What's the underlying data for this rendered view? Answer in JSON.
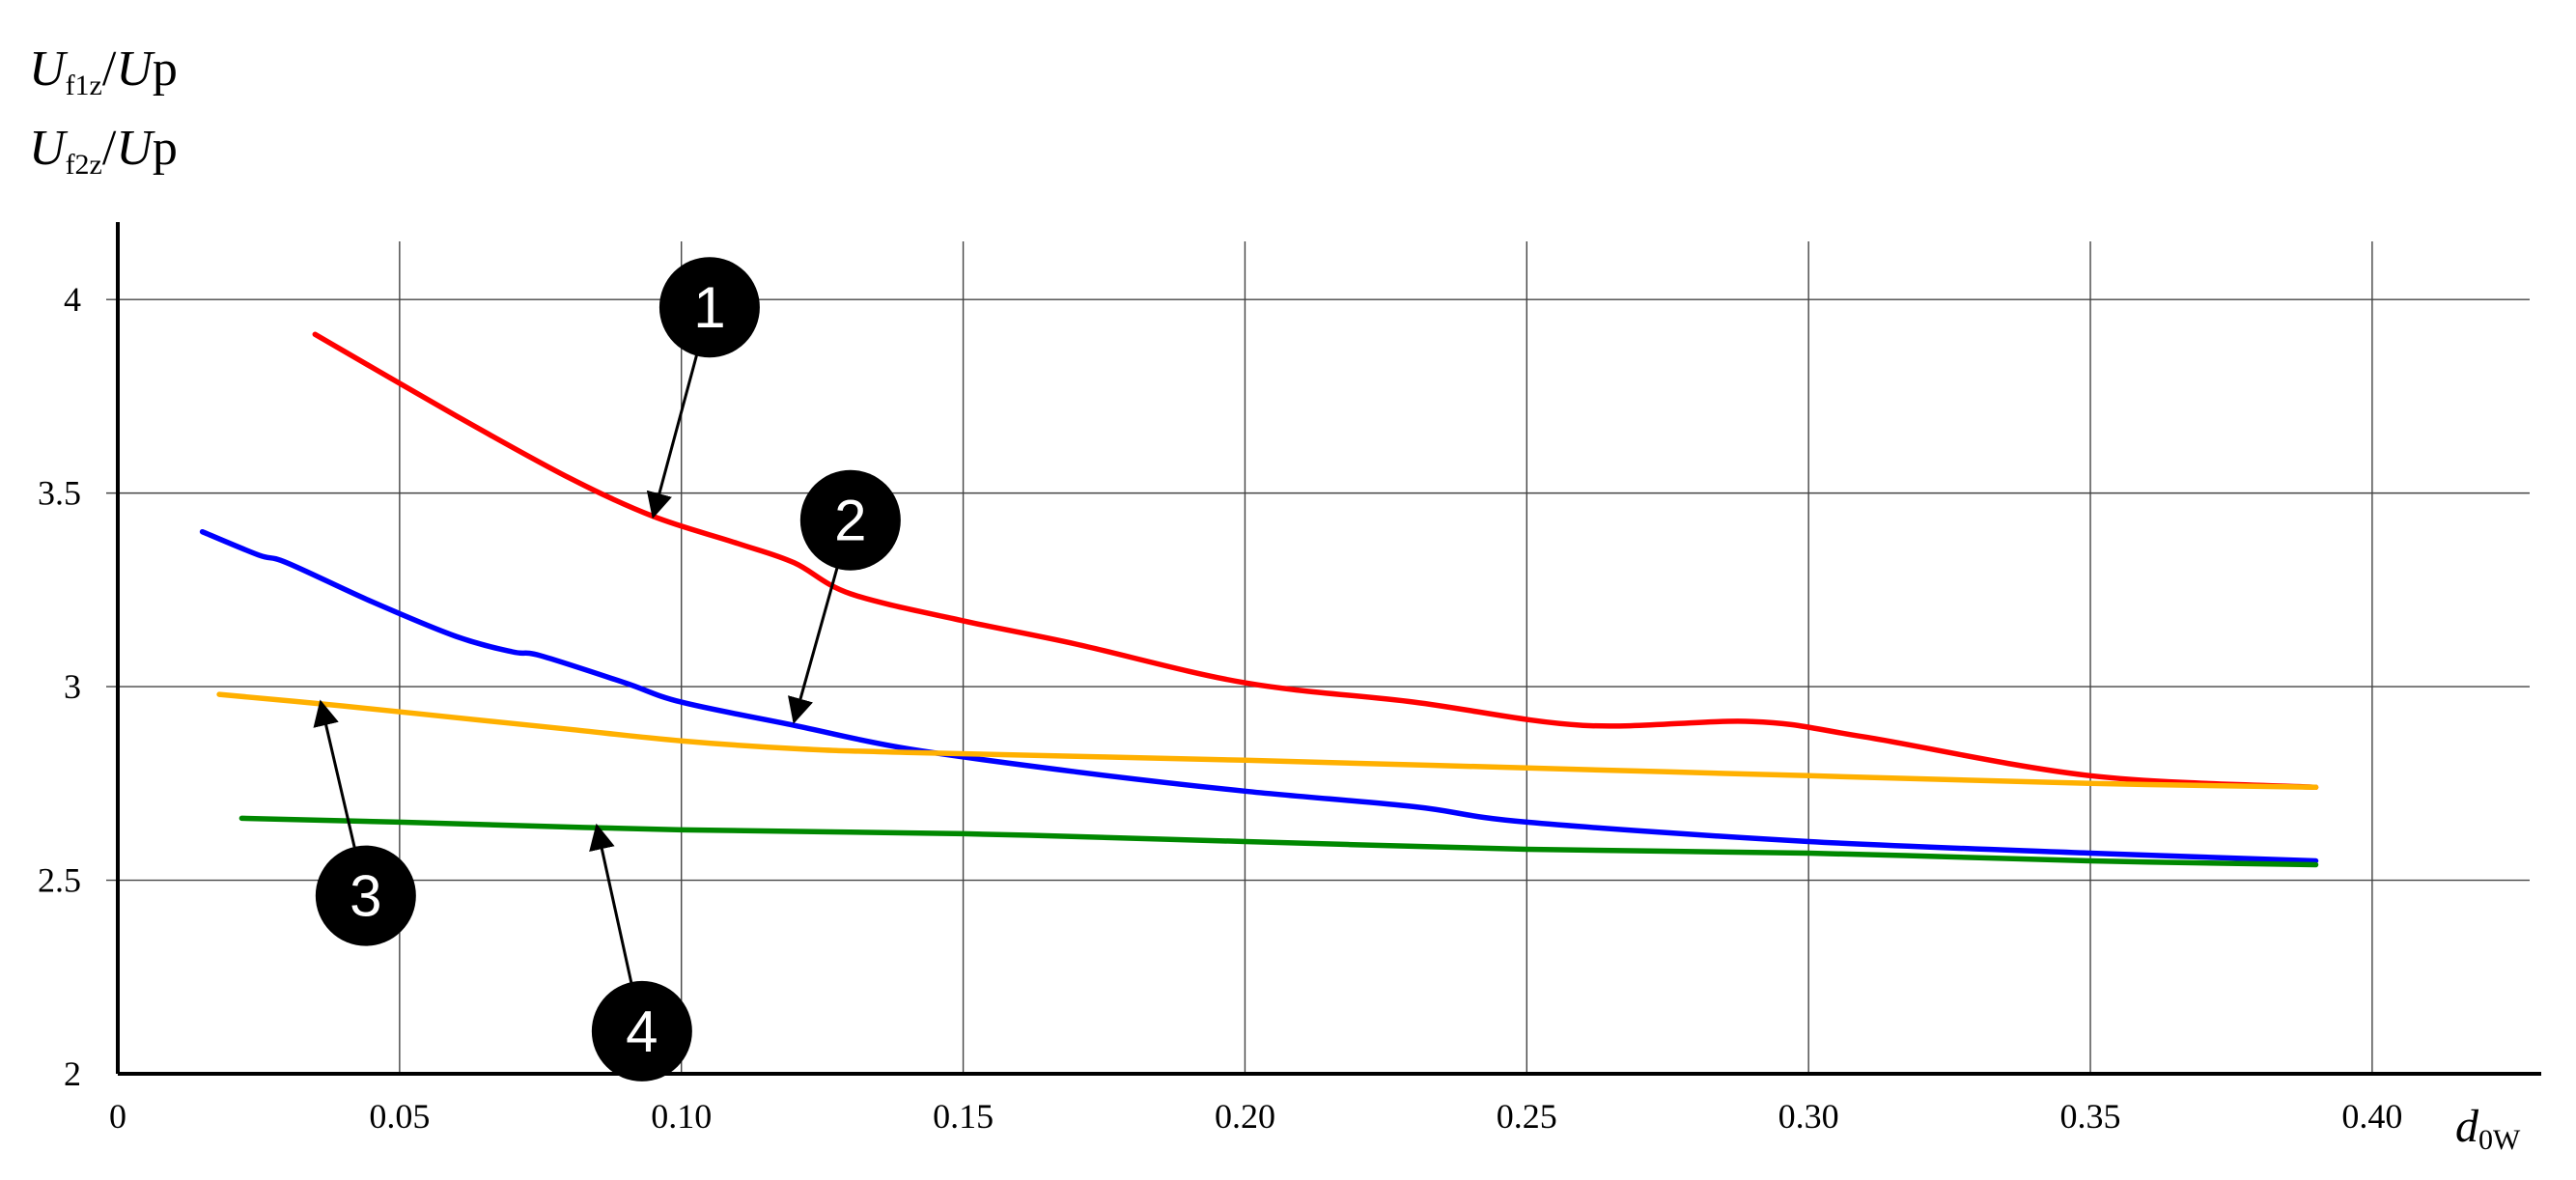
{
  "chart_data": {
    "type": "line",
    "xlabel": "d0W",
    "ylabel_lines": [
      "Uf1z/Up",
      "Uf2z/Up"
    ],
    "xlim": [
      0,
      0.43
    ],
    "ylim": [
      2,
      4.2
    ],
    "x_ticks": [
      "0",
      "0.05",
      "0.10",
      "0.15",
      "0.20",
      "0.25",
      "0.30",
      "0.35",
      "0.40"
    ],
    "x_tick_values": [
      0,
      0.05,
      0.1,
      0.15,
      0.2,
      0.25,
      0.3,
      0.35,
      0.4
    ],
    "y_ticks": [
      "2",
      "2.5",
      "3",
      "3.5",
      "4"
    ],
    "y_tick_values": [
      2,
      2.5,
      3,
      3.5,
      4
    ],
    "grid": true,
    "legend": "numbered markers with arrows",
    "series": [
      {
        "name": "1",
        "color": "#ff0000",
        "x": [
          0.035,
          0.06,
          0.08,
          0.095,
          0.11,
          0.12,
          0.13,
          0.15,
          0.17,
          0.2,
          0.23,
          0.26,
          0.29,
          0.31,
          0.35,
          0.39
        ],
        "y": [
          3.91,
          3.7,
          3.54,
          3.44,
          3.37,
          3.32,
          3.24,
          3.17,
          3.11,
          3.01,
          2.96,
          2.9,
          2.91,
          2.87,
          2.77,
          2.74
        ]
      },
      {
        "name": "2",
        "color": "#0000ff",
        "x": [
          0.015,
          0.025,
          0.03,
          0.045,
          0.06,
          0.07,
          0.075,
          0.09,
          0.1,
          0.12,
          0.14,
          0.17,
          0.2,
          0.23,
          0.25,
          0.3,
          0.35,
          0.39
        ],
        "y": [
          3.4,
          3.34,
          3.32,
          3.22,
          3.13,
          3.09,
          3.08,
          3.01,
          2.96,
          2.9,
          2.84,
          2.78,
          2.73,
          2.69,
          2.65,
          2.6,
          2.57,
          2.55
        ]
      },
      {
        "name": "3",
        "color": "#ffb000",
        "x": [
          0.018,
          0.04,
          0.06,
          0.08,
          0.1,
          0.12,
          0.14,
          0.2,
          0.25,
          0.3,
          0.35,
          0.39
        ],
        "y": [
          2.98,
          2.95,
          2.92,
          2.89,
          2.86,
          2.84,
          2.83,
          2.81,
          2.79,
          2.77,
          2.75,
          2.74
        ]
      },
      {
        "name": "4",
        "color": "#008800",
        "x": [
          0.022,
          0.05,
          0.1,
          0.15,
          0.2,
          0.25,
          0.3,
          0.35,
          0.39
        ],
        "y": [
          2.66,
          2.65,
          2.63,
          2.62,
          2.6,
          2.58,
          2.57,
          2.55,
          2.54
        ]
      }
    ],
    "markers": [
      {
        "label": "1",
        "pos": [
          0.105,
          3.98
        ],
        "arrow_to": [
          0.095,
          3.44
        ]
      },
      {
        "label": "2",
        "pos": [
          0.13,
          3.43
        ],
        "arrow_to": [
          0.12,
          2.91
        ]
      },
      {
        "label": "3",
        "pos": [
          0.044,
          2.46
        ],
        "arrow_to": [
          0.036,
          2.96
        ]
      },
      {
        "label": "4",
        "pos": [
          0.093,
          2.11
        ],
        "arrow_to": [
          0.085,
          2.64
        ]
      }
    ]
  }
}
